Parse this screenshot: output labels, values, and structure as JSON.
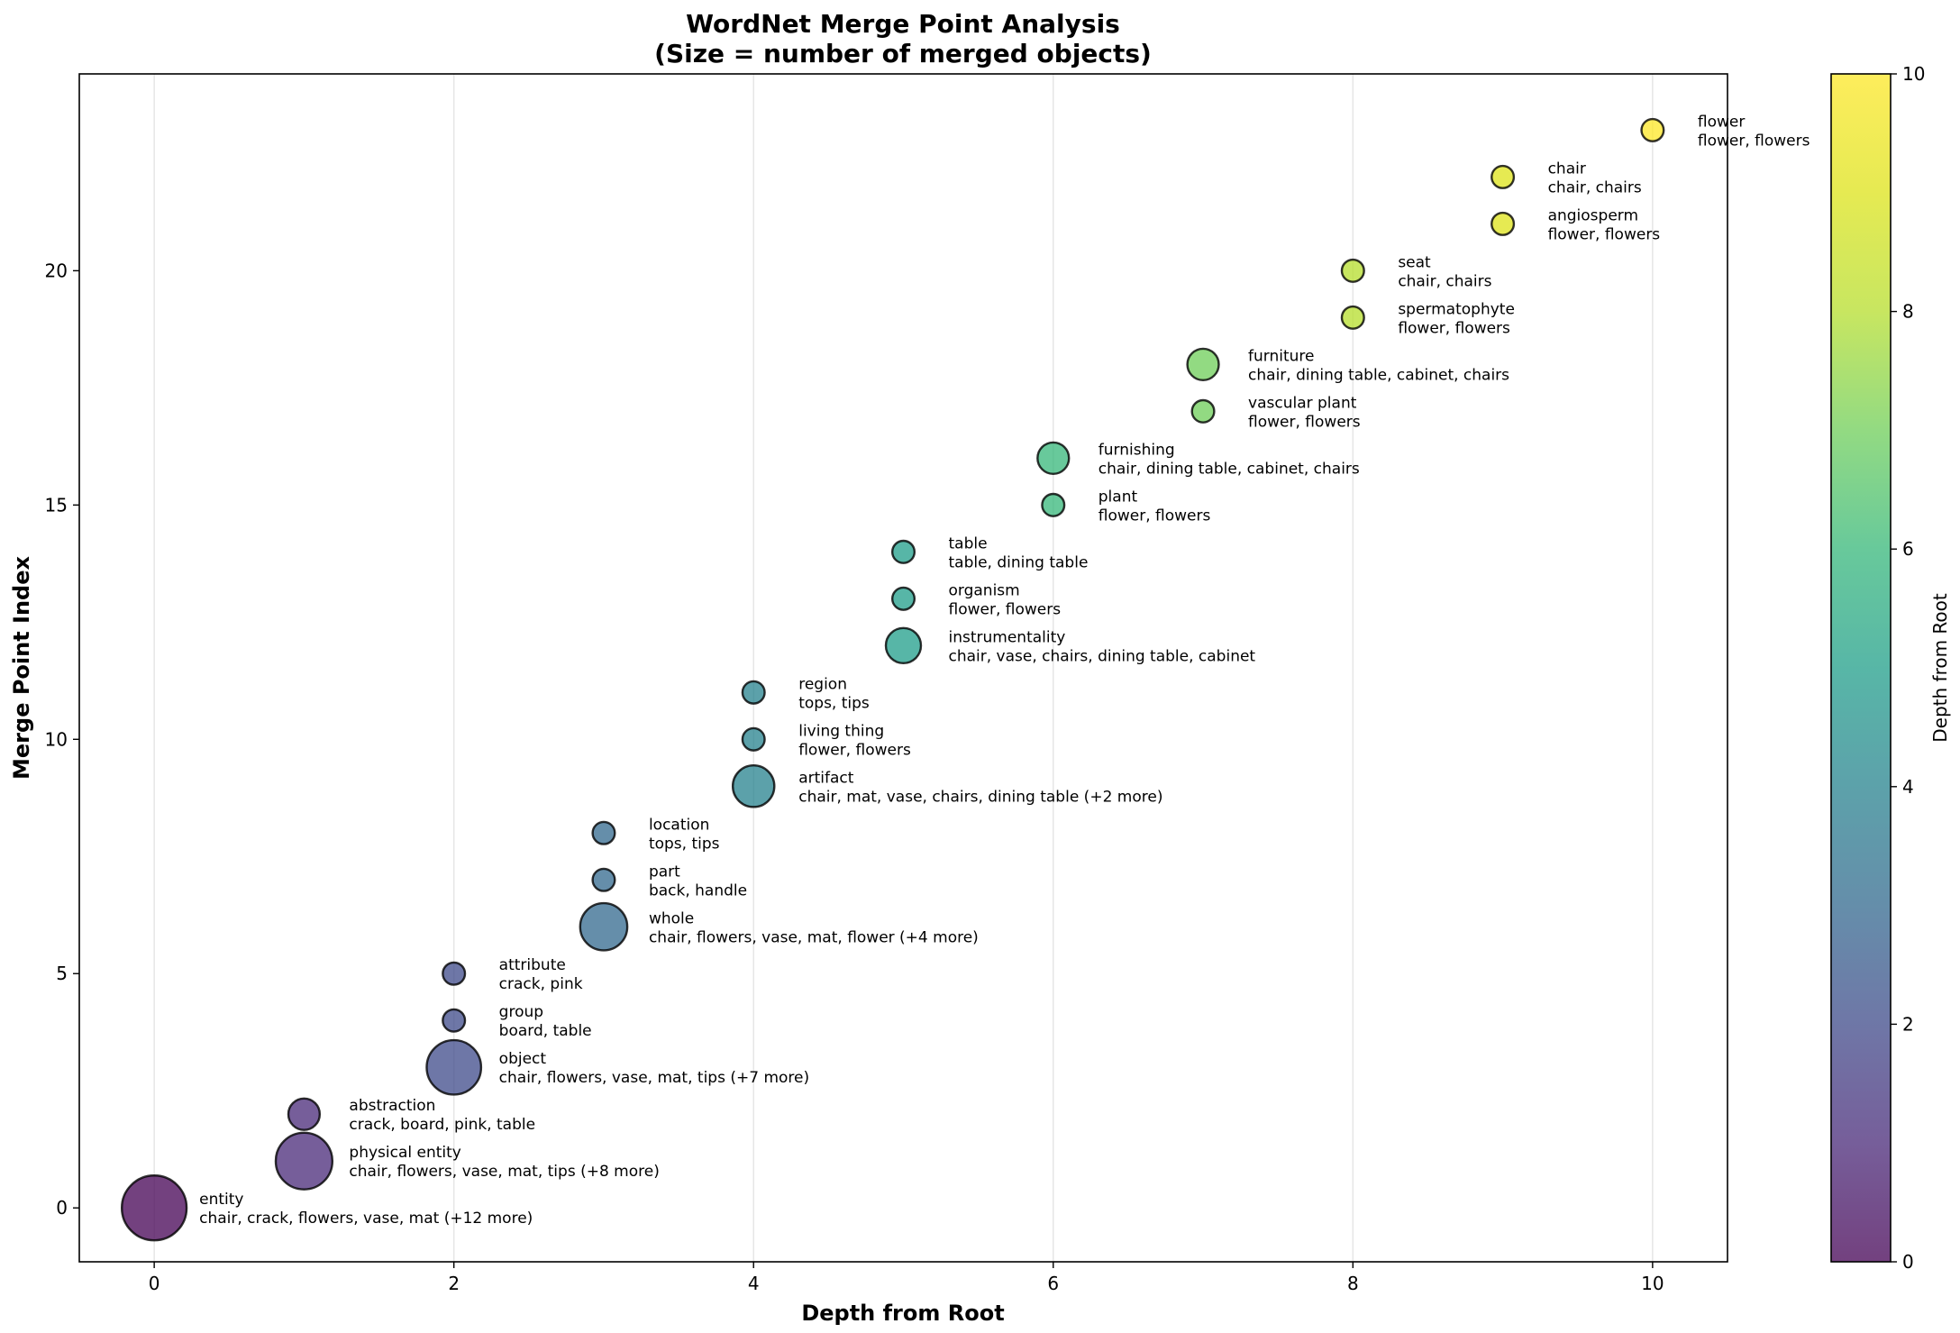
{
  "chart_data": {
    "type": "scatter",
    "title": "WordNet Merge Point Analysis",
    "subtitle": "(Size = number of merged objects)",
    "xlabel": "Depth from Root",
    "ylabel": "Merge Point Index",
    "xlim": [
      -0.5,
      10.5
    ],
    "ylim": [
      -1.15,
      24.2
    ],
    "xticks": [
      0,
      2,
      4,
      6,
      8,
      10
    ],
    "yticks": [
      0,
      5,
      10,
      15,
      20
    ],
    "grid": "x-only",
    "colormap": "viridis",
    "colorbar": {
      "label": "Depth from Root",
      "min": 0,
      "max": 10,
      "ticks": [
        0,
        2,
        4,
        6,
        8,
        10
      ]
    },
    "points": [
      {
        "x": 0,
        "y": 0,
        "size": 17,
        "name": "entity",
        "objects": "chair, crack, flowers, vase, mat (+12 more)"
      },
      {
        "x": 1,
        "y": 1,
        "size": 13,
        "name": "physical entity",
        "objects": "chair, flowers, vase, mat, tips (+8 more)"
      },
      {
        "x": 1,
        "y": 2,
        "size": 4,
        "name": "abstraction",
        "objects": "crack, board, pink, table"
      },
      {
        "x": 2,
        "y": 3,
        "size": 12,
        "name": "object",
        "objects": "chair, flowers, vase, mat, tips (+7 more)"
      },
      {
        "x": 2,
        "y": 4,
        "size": 2,
        "name": "group",
        "objects": "board, table"
      },
      {
        "x": 2,
        "y": 5,
        "size": 2,
        "name": "attribute",
        "objects": "crack, pink"
      },
      {
        "x": 3,
        "y": 6,
        "size": 9,
        "name": "whole",
        "objects": "chair, flowers, vase, mat, flower (+4 more)"
      },
      {
        "x": 3,
        "y": 7,
        "size": 2,
        "name": "part",
        "objects": "back, handle"
      },
      {
        "x": 3,
        "y": 8,
        "size": 2,
        "name": "location",
        "objects": "tops, tips"
      },
      {
        "x": 4,
        "y": 9,
        "size": 7,
        "name": "artifact",
        "objects": "chair, mat, vase, chairs, dining table (+2 more)"
      },
      {
        "x": 4,
        "y": 10,
        "size": 2,
        "name": "living thing",
        "objects": "flower, flowers"
      },
      {
        "x": 4,
        "y": 11,
        "size": 2,
        "name": "region",
        "objects": "tops, tips"
      },
      {
        "x": 5,
        "y": 12,
        "size": 5,
        "name": "instrumentality",
        "objects": "chair, vase, chairs, dining table, cabinet"
      },
      {
        "x": 5,
        "y": 13,
        "size": 2,
        "name": "organism",
        "objects": "flower, flowers"
      },
      {
        "x": 5,
        "y": 14,
        "size": 2,
        "name": "table",
        "objects": "table, dining table"
      },
      {
        "x": 6,
        "y": 15,
        "size": 2,
        "name": "plant",
        "objects": "flower, flowers"
      },
      {
        "x": 6,
        "y": 16,
        "size": 4,
        "name": "furnishing",
        "objects": "chair, dining table, cabinet, chairs"
      },
      {
        "x": 7,
        "y": 17,
        "size": 2,
        "name": "vascular plant",
        "objects": "flower, flowers"
      },
      {
        "x": 7,
        "y": 18,
        "size": 4,
        "name": "furniture",
        "objects": "chair, dining table, cabinet, chairs"
      },
      {
        "x": 8,
        "y": 19,
        "size": 2,
        "name": "spermatophyte",
        "objects": "flower, flowers"
      },
      {
        "x": 8,
        "y": 20,
        "size": 2,
        "name": "seat",
        "objects": "chair, chairs"
      },
      {
        "x": 9,
        "y": 21,
        "size": 2,
        "name": "angiosperm",
        "objects": "flower, flowers"
      },
      {
        "x": 9,
        "y": 22,
        "size": 2,
        "name": "chair",
        "objects": "chair, chairs"
      },
      {
        "x": 10,
        "y": 23,
        "size": 2,
        "name": "flower",
        "objects": "flower, flowers"
      }
    ]
  }
}
